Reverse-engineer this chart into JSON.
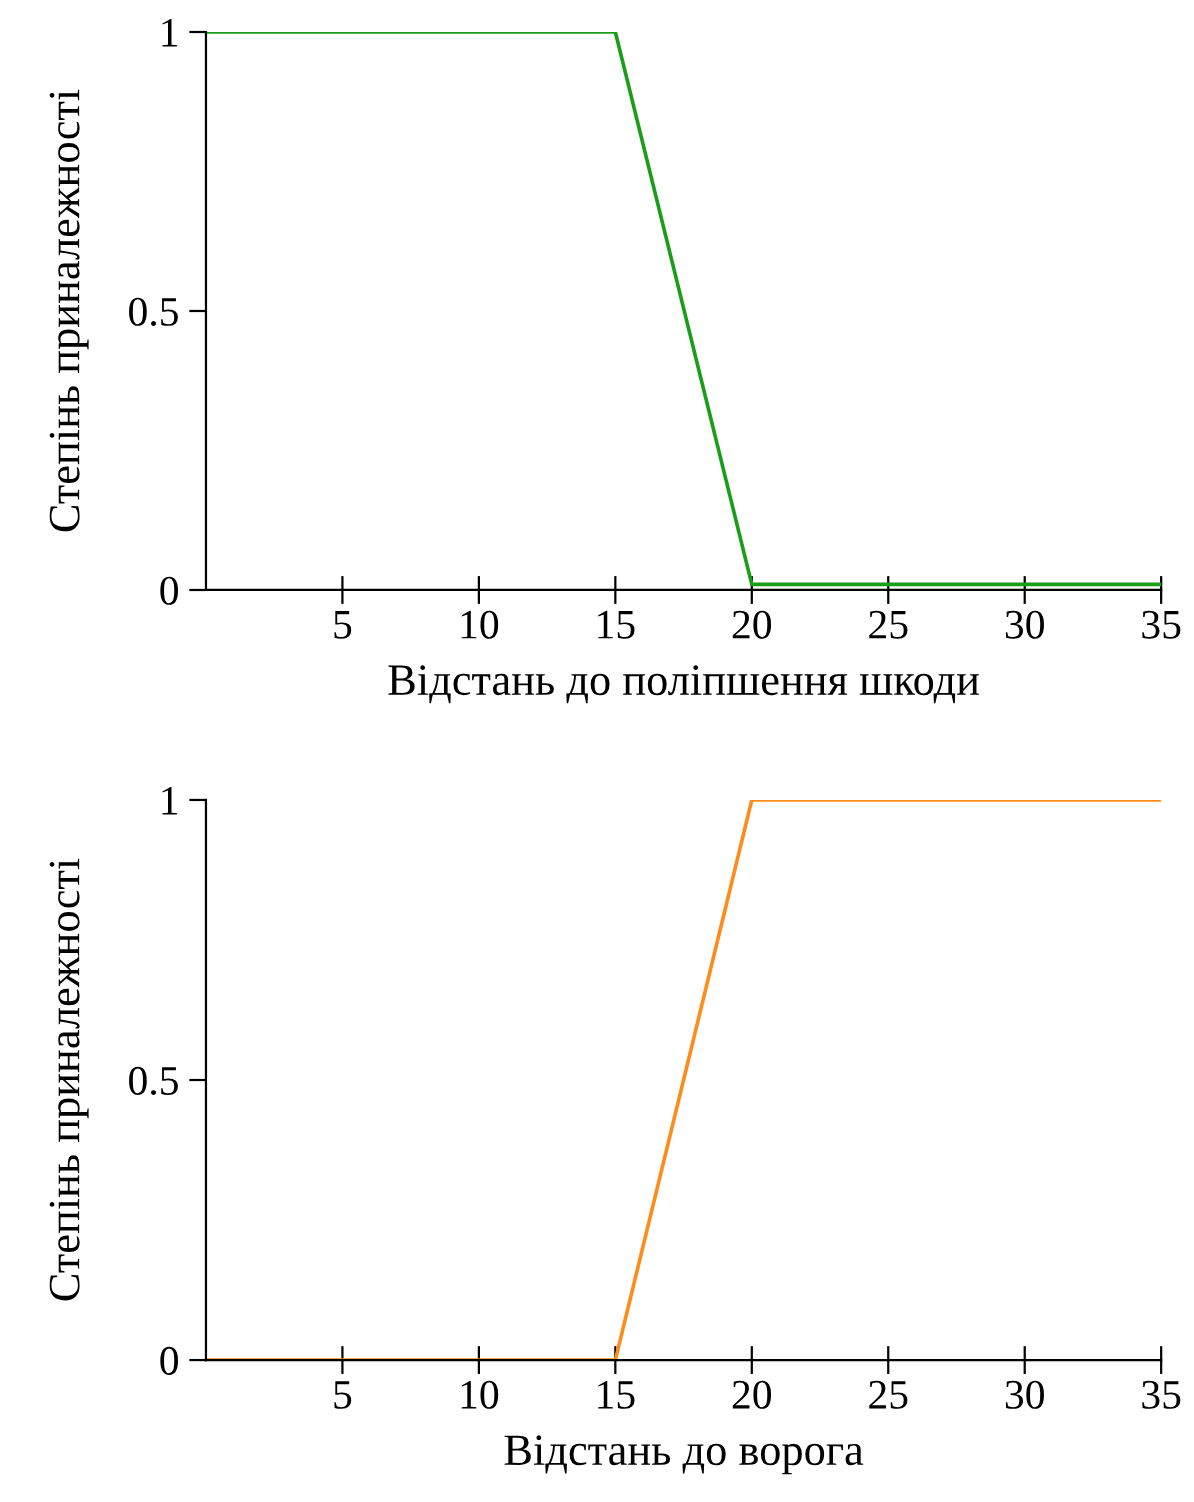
{
  "chart_data": [
    {
      "type": "line",
      "xlabel": "Відстань до поліпшення шкоди",
      "ylabel": "Степінь приналежності",
      "xlim": [
        0,
        35
      ],
      "ylim": [
        0,
        1
      ],
      "xticks": [
        5,
        10,
        15,
        20,
        25,
        30,
        35
      ],
      "yticks": [
        0,
        0.5,
        1
      ],
      "grid": false,
      "marker": "none",
      "line_style": "solid",
      "series": [
        {
          "color": "#1a9e1a",
          "x": [
            0,
            15,
            20,
            35
          ],
          "values": [
            1,
            1,
            0.01,
            0.01
          ]
        }
      ]
    },
    {
      "type": "line",
      "xlabel": "Відстань до ворога",
      "ylabel": "Степінь приналежності",
      "xlim": [
        0,
        35
      ],
      "ylim": [
        0,
        1
      ],
      "xticks": [
        5,
        10,
        15,
        20,
        25,
        30,
        35
      ],
      "yticks": [
        0,
        0.5,
        1
      ],
      "grid": false,
      "marker": "none",
      "line_style": "solid",
      "series": [
        {
          "color": "#ff8c1a",
          "x": [
            0,
            15,
            20,
            35
          ],
          "values": [
            0,
            0,
            1,
            1
          ]
        }
      ]
    }
  ]
}
